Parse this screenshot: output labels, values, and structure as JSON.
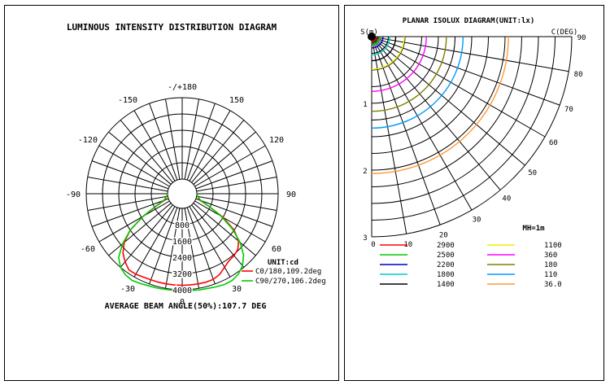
{
  "chart_data": [
    {
      "type": "polar",
      "title": "LUMINOUS INTENSITY DISTRIBUTION DIAGRAM",
      "unit_label": "UNIT:cd",
      "angle_labels": [
        "-/+180",
        "150",
        "120",
        "90",
        "60",
        "30",
        "0",
        "-30",
        "-60",
        "-90",
        "-120",
        "-150"
      ],
      "radial_ticks": [
        "800",
        "1600",
        "2400",
        "3200",
        "4000"
      ],
      "radial_max": 4000,
      "series": [
        {
          "name": "C0/180,109.2deg",
          "color": "#ff0000",
          "points": [
            [
              -90,
              0
            ],
            [
              -80,
              60
            ],
            [
              -70,
              200
            ],
            [
              -65,
              650
            ],
            [
              -60,
              1500
            ],
            [
              -55,
              2400
            ],
            [
              -50,
              3000
            ],
            [
              -45,
              3400
            ],
            [
              -40,
              3650
            ],
            [
              -35,
              3850
            ],
            [
              -30,
              3850
            ],
            [
              -25,
              3800
            ],
            [
              -20,
              3780
            ],
            [
              -15,
              3780
            ],
            [
              -10,
              3780
            ],
            [
              -5,
              3780
            ],
            [
              0,
              3780
            ],
            [
              5,
              3780
            ],
            [
              10,
              3780
            ],
            [
              15,
              3780
            ],
            [
              20,
              3760
            ],
            [
              25,
              3650
            ],
            [
              30,
              3450
            ],
            [
              35,
              3300
            ],
            [
              40,
              3250
            ],
            [
              45,
              3150
            ],
            [
              50,
              2900
            ],
            [
              55,
              2400
            ],
            [
              60,
              1600
            ],
            [
              65,
              700
            ],
            [
              70,
              200
            ],
            [
              80,
              60
            ],
            [
              90,
              0
            ]
          ]
        },
        {
          "name": "C90/270,106.2deg",
          "color": "#00cc00",
          "points": [
            [
              -90,
              0
            ],
            [
              -80,
              60
            ],
            [
              -70,
              250
            ],
            [
              -65,
              700
            ],
            [
              -60,
              1500
            ],
            [
              -55,
              2400
            ],
            [
              -50,
              3100
            ],
            [
              -45,
              3700
            ],
            [
              -40,
              4000
            ],
            [
              -35,
              4150
            ],
            [
              -30,
              4200
            ],
            [
              -25,
              4150
            ],
            [
              -20,
              4100
            ],
            [
              -15,
              4080
            ],
            [
              -10,
              4050
            ],
            [
              -5,
              4050
            ],
            [
              0,
              4050
            ],
            [
              5,
              4050
            ],
            [
              10,
              4080
            ],
            [
              15,
              4100
            ],
            [
              20,
              4150
            ],
            [
              25,
              4200
            ],
            [
              30,
              4200
            ],
            [
              35,
              4100
            ],
            [
              40,
              3900
            ],
            [
              45,
              3550
            ],
            [
              50,
              3000
            ],
            [
              55,
              2300
            ],
            [
              60,
              1500
            ],
            [
              65,
              700
            ],
            [
              70,
              250
            ],
            [
              80,
              60
            ],
            [
              90,
              0
            ]
          ]
        }
      ],
      "footer": "AVERAGE BEAM ANGLE(50%):107.7 DEG"
    },
    {
      "type": "isolux",
      "title": "PLANAR ISOLUX DIAGRAM(UNIT:lx)",
      "y_axis_label": "S(m)",
      "c_axis_label": "C(DEG)",
      "y_ticks": [
        "0",
        "1",
        "2",
        "3"
      ],
      "angle_labels": [
        "0",
        "10",
        "20",
        "30",
        "40",
        "50",
        "60",
        "70",
        "80",
        "90"
      ],
      "mh_label": "MH=1m",
      "levels": [
        {
          "value": "2900",
          "color": "#ff0000",
          "r": 0.07
        },
        {
          "value": "2500",
          "color": "#00cc00",
          "r": 0.12
        },
        {
          "value": "2200",
          "color": "#0000cc",
          "r": 0.17
        },
        {
          "value": "1800",
          "color": "#00cccc",
          "r": 0.27
        },
        {
          "value": "1400",
          "color": "#000000",
          "r": 0.36
        },
        {
          "value": "1100",
          "color": "#eeee00",
          "r": 0.49
        },
        {
          "value": "360",
          "color": "#ff00ff",
          "r": 0.82
        },
        {
          "value": "180",
          "color": "#808000",
          "r": 1.12
        },
        {
          "value": "110",
          "color": "#0099ff",
          "r": 1.37
        },
        {
          "value": "36.0",
          "color": "#ff9933",
          "r": 2.05
        }
      ]
    }
  ]
}
